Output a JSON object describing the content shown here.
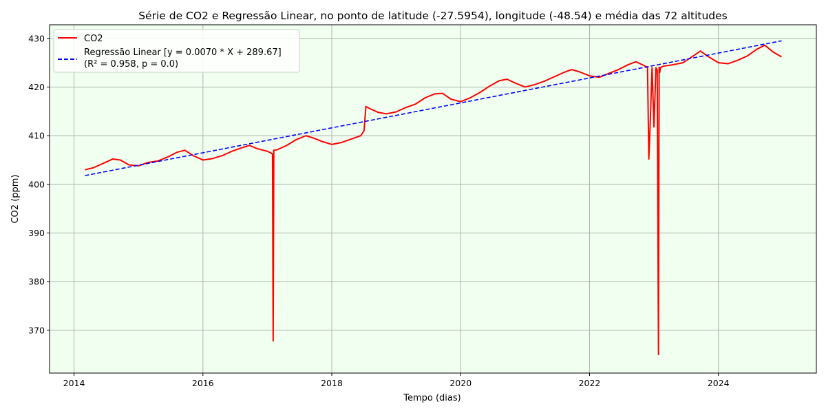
{
  "chart_data": {
    "type": "line",
    "title": "Série de CO2 e Regressão Linear, no ponto de latitude (-27.5954), longitude (-48.54) e média das 72 altitudes",
    "xlabel": "Tempo (dias)",
    "ylabel": "CO2 (ppm)",
    "xlim": [
      2013.62,
      2025.52
    ],
    "ylim": [
      361.2,
      432.8
    ],
    "x_ticks": [
      2014,
      2016,
      2018,
      2020,
      2022,
      2024
    ],
    "y_ticks": [
      370,
      380,
      390,
      400,
      410,
      420,
      430
    ],
    "grid": true,
    "legend_position": "top-left",
    "background_color": "#f0fff0",
    "series": [
      {
        "name": "CO2",
        "color": "#ff0000",
        "style": "solid",
        "x": [
          2014.17,
          2014.3,
          2014.45,
          2014.6,
          2014.72,
          2014.85,
          2015.0,
          2015.15,
          2015.3,
          2015.45,
          2015.6,
          2015.72,
          2015.85,
          2016.0,
          2016.15,
          2016.3,
          2016.45,
          2016.6,
          2016.72,
          2016.85,
          2017.0,
          2017.05,
          2017.08,
          2017.09,
          2017.1,
          2017.15,
          2017.3,
          2017.45,
          2017.6,
          2017.72,
          2017.85,
          2018.0,
          2018.15,
          2018.3,
          2018.45,
          2018.5,
          2018.53,
          2018.6,
          2018.72,
          2018.85,
          2019.0,
          2019.15,
          2019.3,
          2019.45,
          2019.6,
          2019.72,
          2019.85,
          2020.0,
          2020.15,
          2020.3,
          2020.45,
          2020.6,
          2020.72,
          2020.85,
          2021.0,
          2021.15,
          2021.3,
          2021.45,
          2021.6,
          2021.72,
          2021.85,
          2022.0,
          2022.15,
          2022.3,
          2022.45,
          2022.6,
          2022.72,
          2022.85,
          2022.9,
          2022.92,
          2022.94,
          2022.97,
          2023.0,
          2023.03,
          2023.05,
          2023.07,
          2023.08,
          2023.09,
          2023.1,
          2023.15,
          2023.3,
          2023.45,
          2023.6,
          2023.72,
          2023.85,
          2024.0,
          2024.15,
          2024.3,
          2024.45,
          2024.6,
          2024.72,
          2024.85,
          2024.98
        ],
        "y": [
          403.0,
          403.4,
          404.3,
          405.2,
          405.0,
          404.0,
          403.8,
          404.5,
          404.8,
          405.6,
          406.6,
          407.0,
          405.9,
          405.0,
          405.3,
          405.9,
          406.8,
          407.5,
          408.0,
          407.3,
          406.8,
          406.5,
          406.2,
          367.8,
          407.0,
          407.1,
          408.0,
          409.2,
          410.0,
          409.5,
          408.8,
          408.2,
          408.6,
          409.3,
          410.0,
          411.0,
          416.0,
          415.5,
          414.8,
          414.5,
          414.9,
          415.8,
          416.5,
          417.8,
          418.6,
          418.7,
          417.5,
          417.0,
          417.8,
          418.9,
          420.2,
          421.3,
          421.6,
          420.8,
          420.0,
          420.5,
          421.2,
          422.1,
          423.0,
          423.6,
          423.1,
          422.3,
          422.0,
          422.8,
          423.6,
          424.6,
          425.2,
          424.4,
          424.0,
          405.2,
          412.0,
          424.0,
          411.8,
          424.0,
          423.5,
          365.0,
          424.1,
          423.0,
          424.0,
          424.3,
          424.6,
          425.0,
          426.3,
          427.4,
          426.2,
          425.0,
          424.8,
          425.5,
          426.4,
          427.8,
          428.6,
          427.2,
          426.2
        ]
      },
      {
        "name": "Regressão Linear [y = 0.0070 * X + 289.67]\n(R² = 0.958, p = 0.0)",
        "color": "#0000ff",
        "style": "dashed",
        "x": [
          2014.17,
          2024.98
        ],
        "y": [
          401.8,
          429.5
        ]
      }
    ],
    "legend": {
      "entries": [
        "CO2",
        "Regressão Linear [y = 0.0070 * X + 289.67]",
        "(R² = 0.958, p = 0.0)"
      ]
    }
  }
}
